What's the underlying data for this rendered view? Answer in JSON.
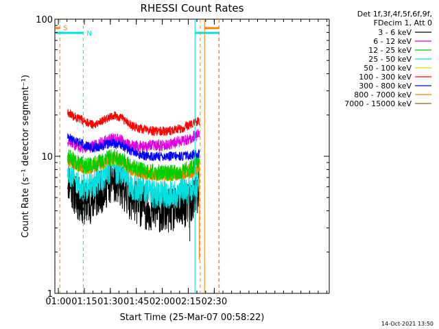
{
  "chart_data": {
    "type": "line",
    "title": "RHESSI Count Rates",
    "xlabel": "Start Time (25-Mar-07 00:58:22)",
    "ylabel": "Count Rate (s⁻¹ detector segment⁻¹)",
    "yscale": "log",
    "ylim": [
      1,
      100
    ],
    "xlim_minutes": [
      -0.37,
      158
    ],
    "x_tick_labels": [
      "01:00",
      "01:15",
      "01:30",
      "01:45",
      "02:00",
      "02:15",
      "02:30"
    ],
    "x_tick_minutes": [
      1.63,
      16.63,
      31.63,
      46.63,
      61.63,
      76.63,
      91.63
    ],
    "y_tick_labels": [
      "1",
      "10",
      "100"
    ],
    "y_tick_values": [
      1,
      10,
      100
    ],
    "legend_header": [
      "Det 1f,3f,4f,5f,6f,9f,",
      "FDecim 1, Att 0"
    ],
    "legend_position": "top-right",
    "series": [
      {
        "name": "3 - 6 keV",
        "color": "#000000",
        "x": [
          7,
          12,
          17,
          22,
          28,
          33,
          38,
          43,
          48,
          53,
          58,
          63,
          68,
          73,
          78,
          83
        ],
        "values": [
          7.0,
          5.0,
          4.5,
          4.8,
          5.8,
          6.8,
          6.0,
          5.0,
          4.5,
          4.2,
          4.0,
          4.0,
          4.0,
          4.2,
          4.6,
          5.5
        ],
        "noise": 0.38,
        "seed": 11
      },
      {
        "name": "6 - 12 keV",
        "color": "#dd00dd",
        "x": [
          7,
          12,
          17,
          22,
          28,
          33,
          38,
          43,
          48,
          53,
          58,
          63,
          68,
          73,
          78,
          83
        ],
        "values": [
          13.0,
          12.0,
          11.5,
          11.8,
          12.8,
          13.5,
          13.0,
          12.0,
          11.8,
          12.0,
          12.0,
          12.0,
          12.5,
          13.0,
          13.5,
          14.5
        ],
        "noise": 0.1,
        "seed": 12
      },
      {
        "name": "12 - 25 keV",
        "color": "#00cc00",
        "x": [
          7,
          12,
          17,
          22,
          28,
          33,
          38,
          43,
          48,
          53,
          58,
          63,
          68,
          73,
          78,
          83
        ],
        "values": [
          10.0,
          9.0,
          8.5,
          8.7,
          9.3,
          10.0,
          9.5,
          8.5,
          8.0,
          7.8,
          7.6,
          7.6,
          7.6,
          7.8,
          8.2,
          9.0
        ],
        "noise": 0.14,
        "seed": 13
      },
      {
        "name": "25 - 50 keV",
        "color": "#00e0e0",
        "x": [
          7,
          12,
          17,
          22,
          28,
          33,
          38,
          43,
          48,
          53,
          58,
          63,
          68,
          73,
          78,
          83
        ],
        "values": [
          8.0,
          6.5,
          6.0,
          6.2,
          7.2,
          8.2,
          7.5,
          6.3,
          5.8,
          5.5,
          5.3,
          5.3,
          5.3,
          5.5,
          5.8,
          6.5
        ],
        "noise": 0.25,
        "seed": 14
      },
      {
        "name": "50 - 100 keV",
        "color": "#dddd00",
        "x": [
          7,
          12,
          17,
          22,
          28,
          33,
          38,
          43,
          48,
          53,
          58,
          63,
          68,
          73,
          78,
          83
        ],
        "values": [
          9.5,
          8.8,
          8.3,
          8.5,
          9.0,
          9.6,
          9.2,
          8.3,
          7.8,
          7.6,
          7.4,
          7.4,
          7.4,
          7.6,
          8.0,
          8.8
        ],
        "noise": 0.12,
        "seed": 15
      },
      {
        "name": "100 - 300 keV",
        "color": "#ff0000",
        "x": [
          7,
          12,
          17,
          22,
          28,
          33,
          38,
          43,
          48,
          53,
          58,
          63,
          68,
          73,
          78,
          83
        ],
        "values": [
          21.0,
          19.0,
          18.0,
          17.0,
          18.5,
          20.0,
          19.0,
          17.0,
          16.0,
          15.5,
          15.2,
          15.2,
          15.5,
          16.0,
          17.0,
          18.0
        ],
        "noise": 0.08,
        "seed": 16
      },
      {
        "name": "300 - 800 keV",
        "color": "#0000ff",
        "x": [
          7,
          12,
          17,
          22,
          28,
          33,
          38,
          43,
          48,
          53,
          58,
          63,
          68,
          73,
          78,
          83
        ],
        "values": [
          14.0,
          13.0,
          12.0,
          11.5,
          12.0,
          12.5,
          12.0,
          11.0,
          10.3,
          10.0,
          10.0,
          10.0,
          10.0,
          10.0,
          10.2,
          10.5
        ],
        "noise": 0.08,
        "seed": 17
      },
      {
        "name": "800 - 7000 keV",
        "color": "#ff8000",
        "x": [
          7,
          12,
          17,
          22,
          28,
          33,
          38,
          43,
          48,
          53,
          58,
          63,
          68,
          73,
          78,
          83
        ],
        "values": [
          9.5,
          8.5,
          8.0,
          8.2,
          9.0,
          9.8,
          9.0,
          8.0,
          7.5,
          7.3,
          7.2,
          7.2,
          7.2,
          7.3,
          7.5,
          8.0
        ],
        "noise": 0.09,
        "seed": 18
      },
      {
        "name": "7000 - 15000 keV",
        "color": "#8b6914",
        "x": [],
        "values": [],
        "noise": 0,
        "seed": 19
      }
    ],
    "event_markers": [
      {
        "label": "S",
        "color": "#ff8000",
        "style": "dashed",
        "x_minutes": [
          2.5
        ],
        "bar_x_minutes": [
          0.0,
          2.5
        ],
        "bar_level": "upper"
      },
      {
        "label": "N",
        "color": "#00e0e0",
        "style": "dashed",
        "x_minutes": [
          16.0
        ],
        "bar_x_minutes": [
          0.0,
          16.0
        ],
        "bar_level": "lower"
      },
      {
        "label": "",
        "color": "#00e0e0",
        "style": "solid",
        "x_minutes": [
          80.5
        ],
        "bar_x_minutes": [
          80.5,
          94.3
        ],
        "bar_level": "lower"
      },
      {
        "label": "",
        "color": "#ff8000",
        "style": "solid",
        "x_minutes": [
          86.0
        ],
        "bar_x_minutes": [
          86.0,
          94.3
        ],
        "bar_level": "upper"
      },
      {
        "label": "",
        "color": "#ff8000",
        "style": "dashed",
        "x_minutes": [
          83.5,
          94.3
        ],
        "bar_x_minutes": [],
        "bar_level": ""
      },
      {
        "label": "",
        "color": "#00e0e0",
        "style": "dashed",
        "x_minutes": [
          94.5
        ],
        "bar_x_minutes": [],
        "bar_level": ""
      }
    ],
    "spikes": [
      {
        "color": "#ff8000",
        "x_minutes": 77.0,
        "y_from": 8.0,
        "y_to": 3.0
      },
      {
        "color": "#000000",
        "x_minutes": 77.5,
        "y_from": 5.0,
        "y_to": 2.4
      },
      {
        "color": "#ff8000",
        "x_minutes": 83.0,
        "y_from": 9.0,
        "y_to": 1.75
      }
    ],
    "timestamp": "14-Oct-2021 13:50"
  }
}
